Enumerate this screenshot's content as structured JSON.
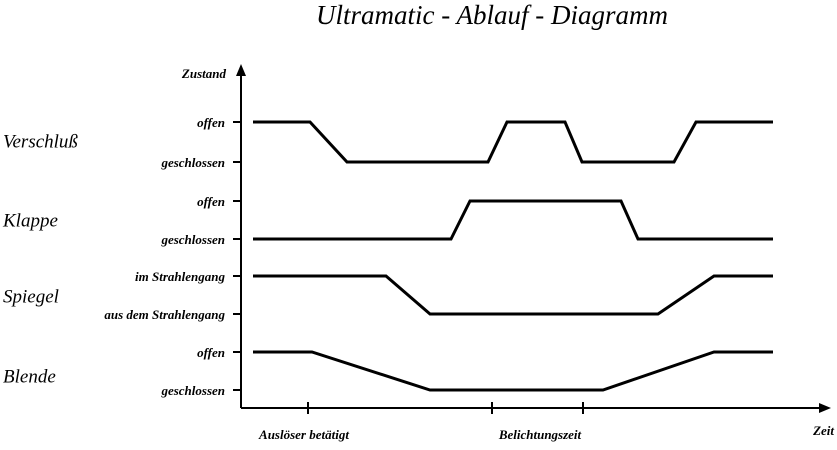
{
  "title": "Ultramatic - Ablauf - Diagramm",
  "y_axis_label": "Zustand",
  "x_axis_label": "Zeit",
  "rows": [
    {
      "name": "Verschluß",
      "states": [
        "offen",
        "geschlossen"
      ]
    },
    {
      "name": "Klappe",
      "states": [
        "offen",
        "geschlossen"
      ]
    },
    {
      "name": "Spiegel",
      "states": [
        "im Strahlengang",
        "aus dem Strahlengang"
      ]
    },
    {
      "name": "Blende",
      "states": [
        "offen",
        "geschlossen"
      ]
    }
  ],
  "x_markers": [
    "Auslöser betätigt",
    "Belichtungszeit"
  ]
}
